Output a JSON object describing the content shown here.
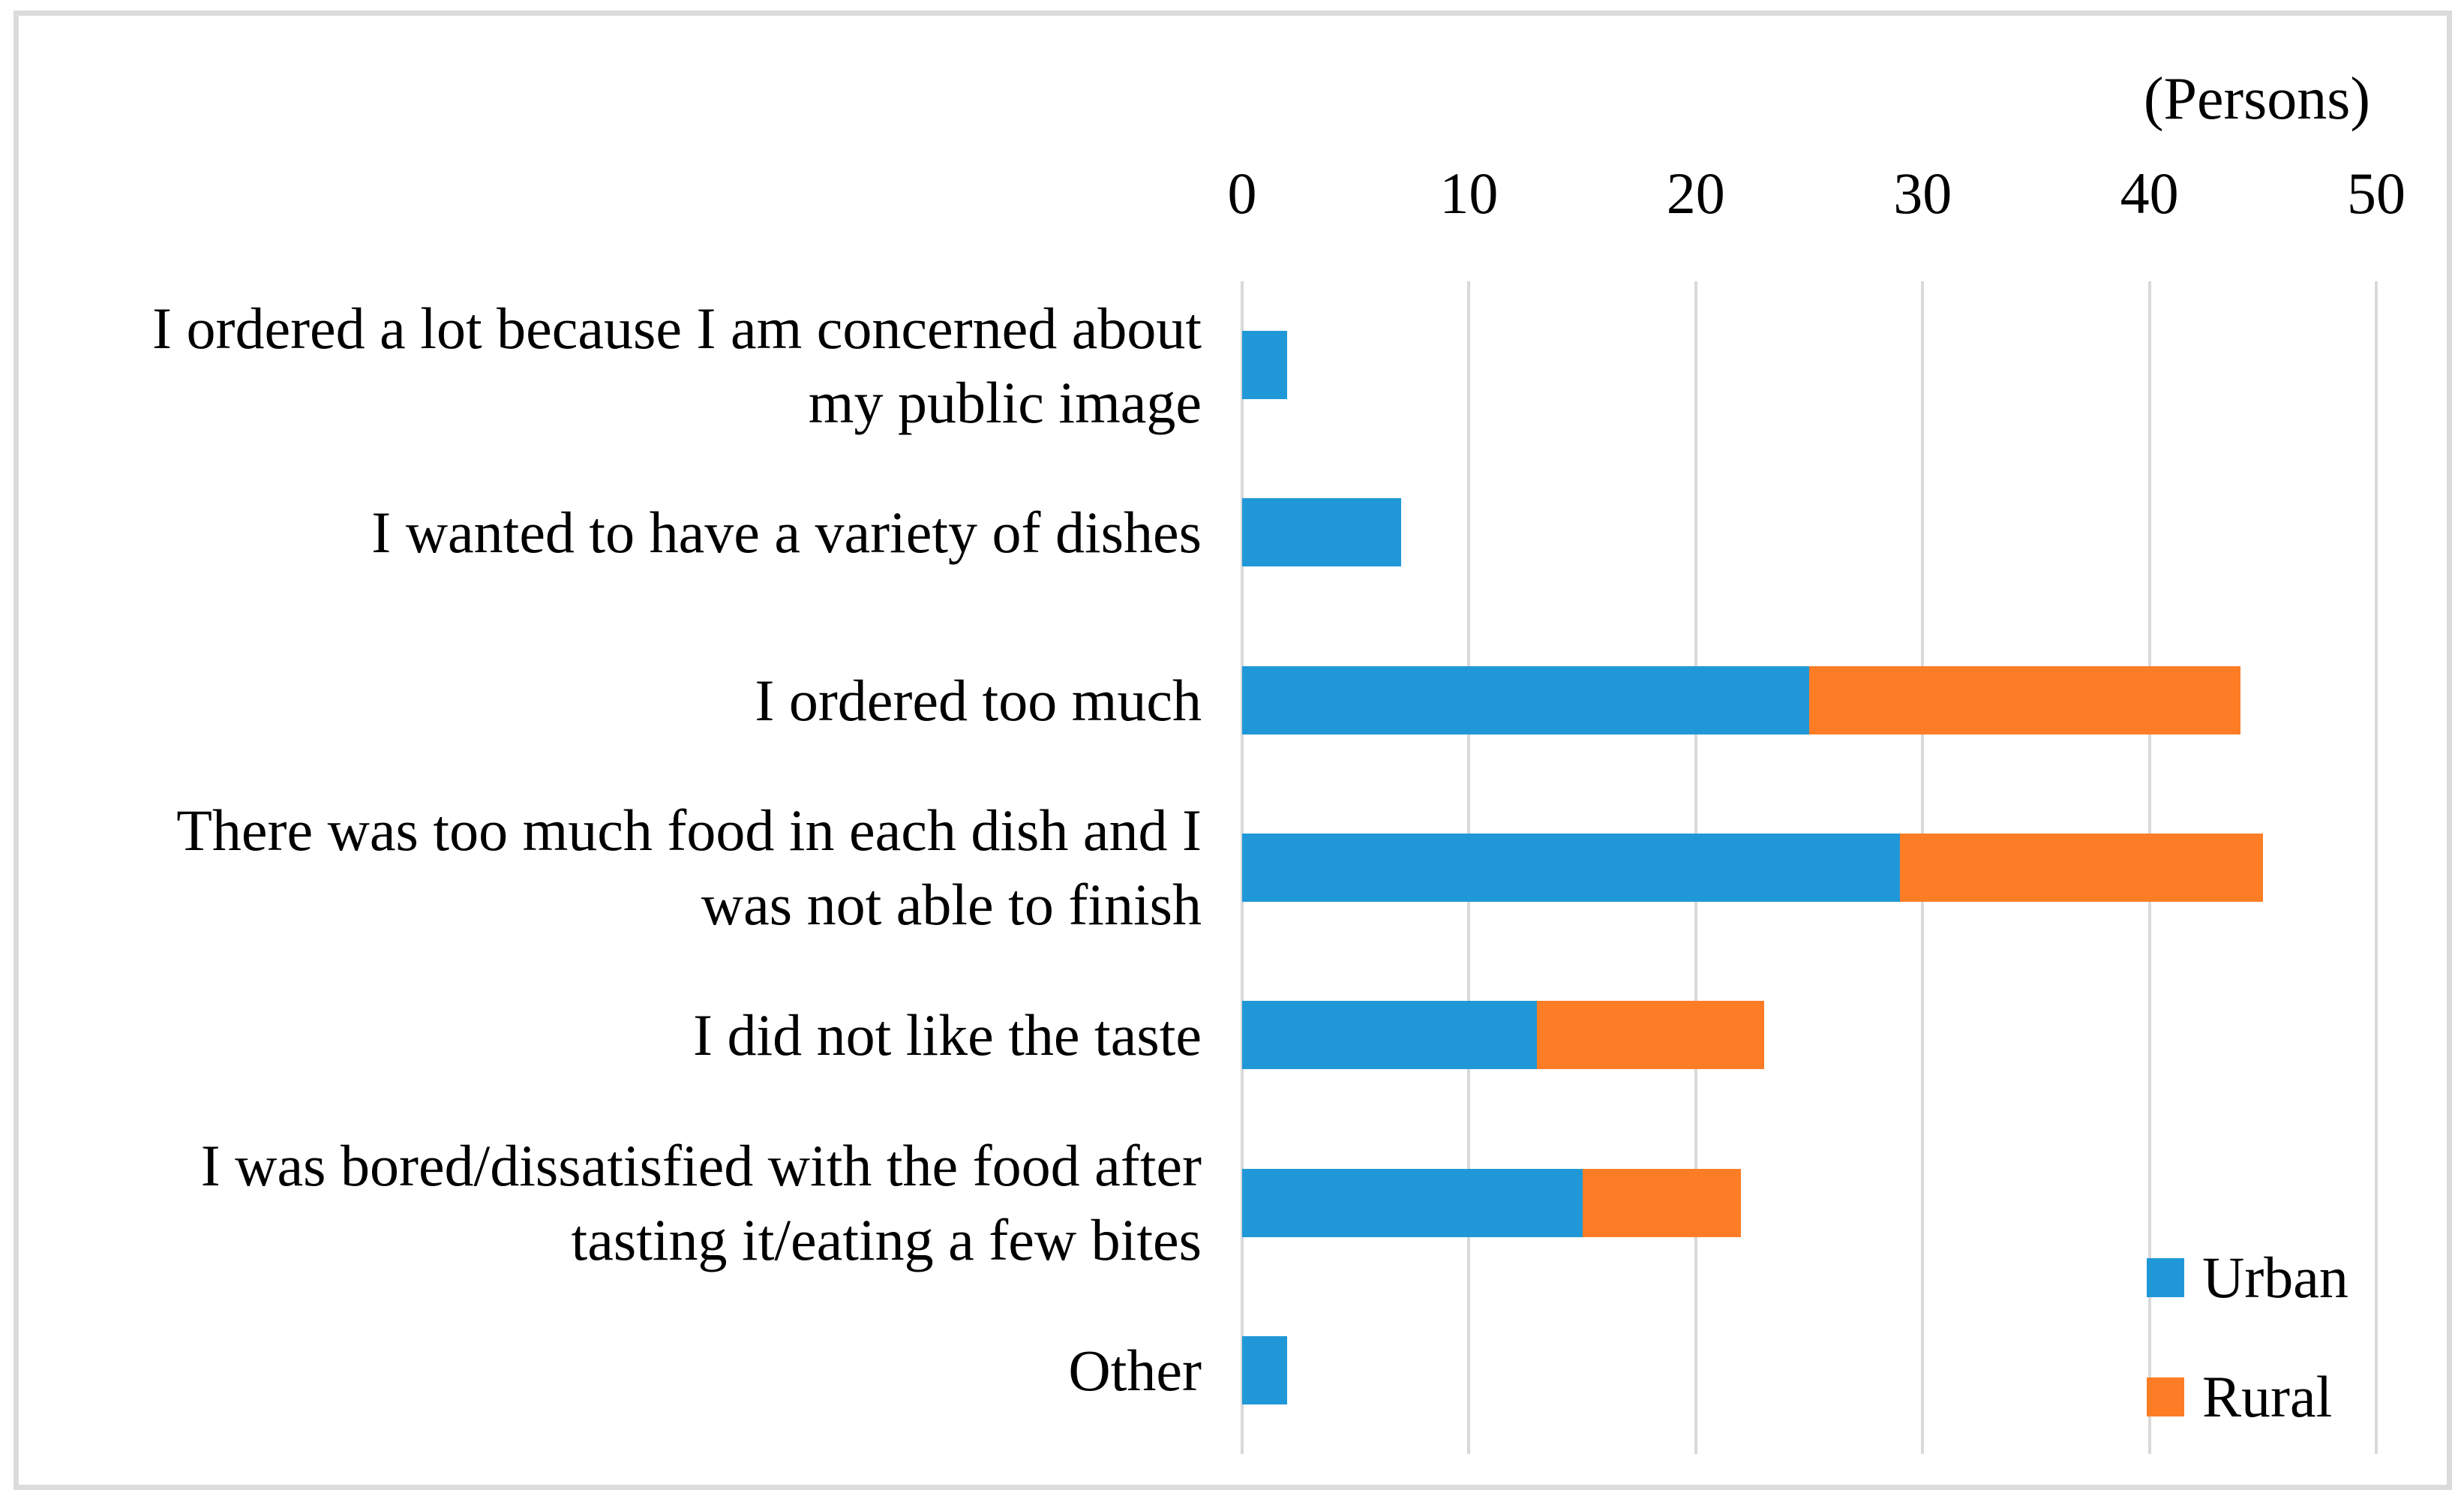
{
  "chart_data": {
    "type": "bar",
    "orientation": "horizontal",
    "stacked": true,
    "title": "(Persons)",
    "categories": [
      "I ordered a lot because I am concerned about\nmy public image",
      "I wanted to have a variety of dishes",
      "I ordered too much",
      "There was too much food in each dish and I\nwas not able to finish",
      "I did not like the taste",
      "I was bored/dissatisfied with the food after\ntasting it/eating a few bites",
      "Other"
    ],
    "series": [
      {
        "name": "Urban",
        "color": "#2098D8",
        "values": [
          2,
          7,
          25,
          29,
          13,
          15,
          2
        ]
      },
      {
        "name": "Rural",
        "color": "#FC7D26",
        "values": [
          0,
          0,
          19,
          16,
          10,
          7,
          0
        ]
      }
    ],
    "totals": [
      2,
      7,
      44,
      45,
      23,
      22,
      2
    ],
    "xlim": [
      0,
      50
    ],
    "xticks": [
      0,
      10,
      20,
      30,
      40,
      50
    ],
    "xlabel": "",
    "ylabel": "",
    "grid": "vertical",
    "gridline_color": "#D9D9D9",
    "frame_color": "#DBDBDB",
    "text_color": "#000000",
    "legend_position": "inside-bottom-right",
    "legend_entries": [
      "Urban",
      "Rural"
    ]
  }
}
